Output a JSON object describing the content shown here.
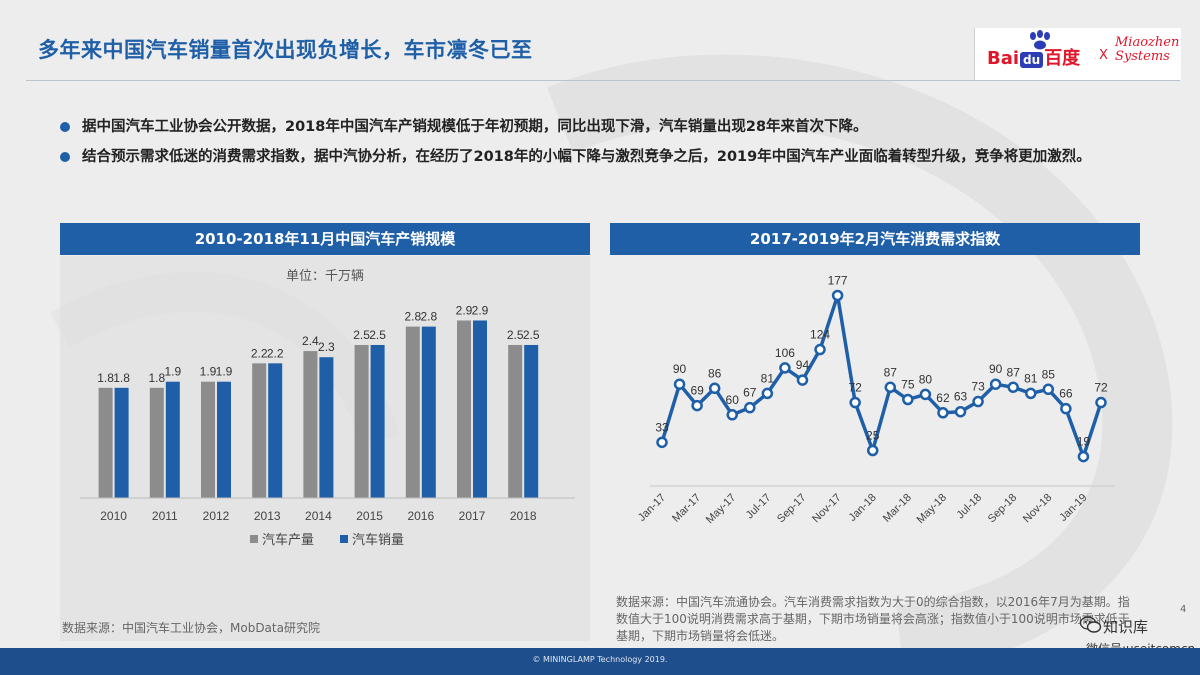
{
  "title": "多年来中国汽车销量首次出现负增长，车市凛冬已至",
  "logo": {
    "baidu_pre": "Bai",
    "baidu_du": "du",
    "baidu_cn": "百度",
    "x": "X",
    "partner_line1": "Miaozhen",
    "partner_line2": "Systems"
  },
  "bullets": [
    "据中国汽车工业协会公开数据，2018年中国汽车产销规模低于年初预期，同比出现下滑，汽车销量出现28年来首次下降。",
    "结合预示需求低迷的消费需求指数，据中汽协分析，在经历了2018年的小幅下降与激烈竞争之后，2019年中国汽车产业面临着转型升级，竞争将更加激烈。"
  ],
  "colors": {
    "accent": "#1f5fa8",
    "production": "#8c8c8c",
    "sales": "#1f5fa8",
    "line": "#1f5fa8"
  },
  "chart_data": [
    {
      "type": "bar",
      "title": "2010-2018年11月中国汽车产销规模",
      "subtitle": "单位：千万辆",
      "categories": [
        "2010",
        "2011",
        "2012",
        "2013",
        "2014",
        "2015",
        "2016",
        "2017",
        "2018"
      ],
      "series": [
        {
          "name": "汽车产量",
          "values": [
            1.8,
            1.8,
            1.9,
            2.2,
            2.4,
            2.5,
            2.8,
            2.9,
            2.5
          ]
        },
        {
          "name": "汽车销量",
          "values": [
            1.8,
            1.9,
            1.9,
            2.2,
            2.3,
            2.5,
            2.8,
            2.9,
            2.5
          ]
        }
      ],
      "ylim": [
        0,
        3.3
      ],
      "grid": false,
      "legend": "bottom"
    },
    {
      "type": "line",
      "title": "2017-2019年2月汽车消费需求指数",
      "x": [
        "Jan-17",
        "Feb-17",
        "Mar-17",
        "Apr-17",
        "May-17",
        "Jun-17",
        "Jul-17",
        "Aug-17",
        "Sep-17",
        "Oct-17",
        "Nov-17",
        "Dec-17",
        "Jan-18",
        "Feb-18",
        "Mar-18",
        "Apr-18",
        "May-18",
        "Jun-18",
        "Jul-18",
        "Aug-18",
        "Sep-18",
        "Oct-18",
        "Nov-18",
        "Dec-18",
        "Jan-19",
        "Feb-19"
      ],
      "x_tick_labels": [
        "Jan-17",
        "Mar-17",
        "May-17",
        "Jul-17",
        "Sep-17",
        "Nov-17",
        "Jan-18",
        "Mar-18",
        "May-18",
        "Jul-18",
        "Sep-18",
        "Nov-18",
        "Jan-19"
      ],
      "values": [
        33,
        90,
        69,
        86,
        60,
        67,
        81,
        106,
        94,
        124,
        177,
        72,
        25,
        87,
        75,
        80,
        62,
        63,
        73,
        90,
        87,
        81,
        85,
        66,
        19,
        72
      ],
      "ylim": [
        0,
        190
      ],
      "grid": false,
      "legend": "none"
    }
  ],
  "source_left": "数据来源：中国汽车工业协会，MobData研究院",
  "source_right": "数据来源：中国汽车流通协会。汽车消费需求指数为大于0的综合指数，以2016年7月为基期。指数值大于100说明消费需求高于基期，下期市场销量将会高涨；指数值小于100说明市场需求低于基期，下期市场销量将会低迷。",
  "page_number": "4",
  "wechat_name": "知识库",
  "wechat_id": "微信号:useitcomcn",
  "footer": "© MININGLAMP Technology 2019."
}
